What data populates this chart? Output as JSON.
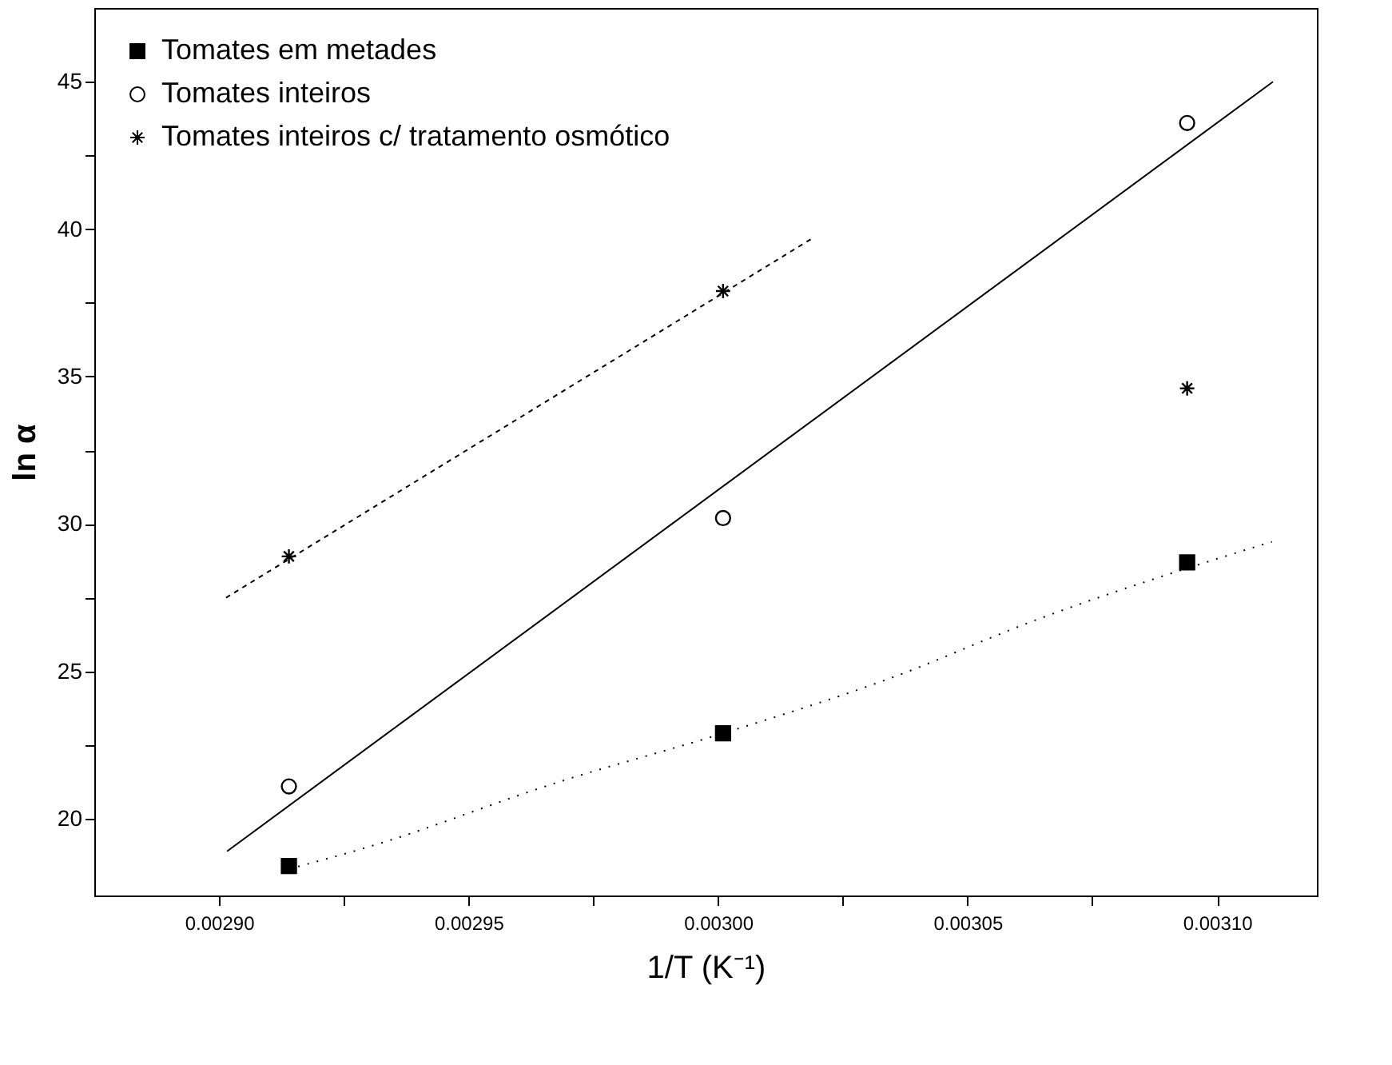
{
  "chart_data": {
    "type": "scatter",
    "xlabel": "1/T (K⁻¹)",
    "ylabel": "ln α",
    "xlim": [
      0.002875,
      0.00312
    ],
    "ylim": [
      17.4,
      47.5
    ],
    "xticks": [
      {
        "value": 0.0029,
        "label": "0.00290"
      },
      {
        "value": 0.002925,
        "label": null
      },
      {
        "value": 0.00295,
        "label": "0.00295"
      },
      {
        "value": 0.002975,
        "label": null
      },
      {
        "value": 0.003,
        "label": "0.00300"
      },
      {
        "value": 0.003025,
        "label": null
      },
      {
        "value": 0.00305,
        "label": "0.00305"
      },
      {
        "value": 0.003075,
        "label": null
      },
      {
        "value": 0.0031,
        "label": "0.00310"
      }
    ],
    "yticks": [
      20,
      {
        "value": 22.5,
        "label": null
      },
      25,
      {
        "value": 27.5,
        "label": null
      },
      30,
      {
        "value": 32.5,
        "label": null
      },
      35,
      {
        "value": 37.5,
        "label": null
      },
      40,
      {
        "value": 42.5,
        "label": null
      },
      45
    ],
    "grid": false,
    "legend": "top left",
    "series": [
      {
        "name": "Tomates em metades",
        "color": "#000000",
        "marker": "square",
        "x": [
          0.002914,
          0.003001,
          0.003094
        ],
        "values": [
          18.4,
          22.9,
          28.7
        ]
      },
      {
        "name": "Tomates inteiros",
        "color": "#000000",
        "marker": "circle",
        "x": [
          0.002914,
          0.003001,
          0.003094
        ],
        "values": [
          21.1,
          30.2,
          43.6
        ]
      },
      {
        "name": "Tomates inteiros c/ tratamento osmótico",
        "color": "#000000",
        "marker": "cross",
        "x": [
          0.002914,
          0.003001,
          0.003094
        ],
        "values": [
          28.9,
          37.9,
          34.6
        ]
      },
      {
        "type": "line",
        "color": "#000000",
        "line_style": "dotted",
        "x": [
          0.002914,
          0.002929,
          0.002969,
          0.003001,
          0.003035,
          0.003063,
          0.003111
        ],
        "values": [
          18.3,
          19.0,
          21.3,
          22.9,
          24.8,
          26.7,
          29.4
        ]
      },
      {
        "type": "line",
        "color": "#000000",
        "line_style": "solid",
        "x": [
          0.0029016,
          0.0031112
        ],
        "values": [
          18.9,
          45.0
        ]
      },
      {
        "type": "line",
        "color": "#000000",
        "line_style": "dashed",
        "x": [
          0.0029014,
          0.003019
        ],
        "values": [
          27.5,
          39.7
        ]
      }
    ]
  }
}
